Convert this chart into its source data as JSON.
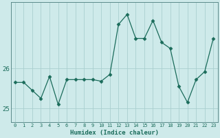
{
  "x": [
    0,
    1,
    2,
    3,
    4,
    5,
    6,
    7,
    8,
    9,
    10,
    11,
    12,
    13,
    14,
    15,
    16,
    17,
    18,
    19,
    20,
    21,
    22,
    23
  ],
  "y": [
    25.65,
    25.65,
    25.45,
    25.25,
    25.8,
    25.1,
    25.72,
    25.72,
    25.72,
    25.72,
    25.68,
    25.85,
    27.1,
    27.35,
    26.75,
    26.75,
    27.2,
    26.65,
    26.5,
    25.55,
    25.15,
    25.72,
    25.92,
    26.75
  ],
  "xlabel": "Humidex (Indice chaleur)",
  "xlim": [
    -0.5,
    23.5
  ],
  "ylim": [
    24.65,
    27.65
  ],
  "yticks": [
    25,
    26
  ],
  "ytick_labels": [
    "25",
    "26"
  ],
  "xticks": [
    0,
    1,
    2,
    3,
    4,
    5,
    6,
    7,
    8,
    9,
    10,
    11,
    12,
    13,
    14,
    15,
    16,
    17,
    18,
    19,
    20,
    21,
    22,
    23
  ],
  "line_color": "#1a6b5a",
  "marker_color": "#1a6b5a",
  "bg_color": "#ceeaea",
  "grid_color": "#aacfcf",
  "tick_label_color": "#1a6b5a",
  "axis_color": "#5a8a8a"
}
